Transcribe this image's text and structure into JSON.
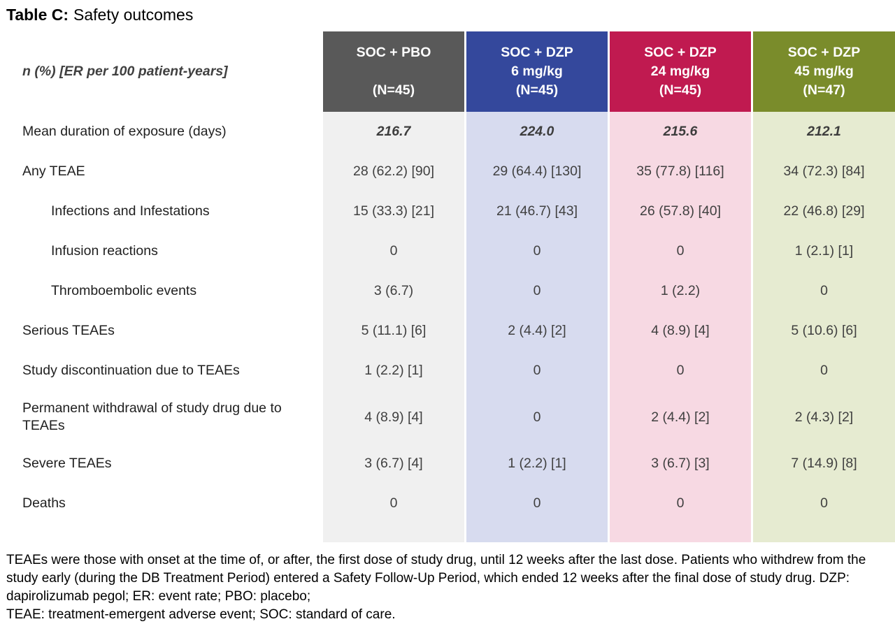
{
  "title": {
    "prefix": "Table C:",
    "text": "Safety outcomes"
  },
  "table": {
    "corner_label": "n (%) [ER per 100 patient-years]",
    "columns": [
      {
        "title": "SOC + PBO",
        "dose": "",
        "n": "(N=45)",
        "header_color": "#595959",
        "body_color": "#F0F0F0"
      },
      {
        "title": "SOC + DZP",
        "dose": "6 mg/kg",
        "n": "(N=45)",
        "header_color": "#34489C",
        "body_color": "#D7DBEF"
      },
      {
        "title": "SOC + DZP",
        "dose": "24 mg/kg",
        "n": "(N=45)",
        "header_color": "#C01A50",
        "body_color": "#F7D9E3"
      },
      {
        "title": "SOC + DZP",
        "dose": "45 mg/kg",
        "n": "(N=47)",
        "header_color": "#7A8C2B",
        "body_color": "#E6EBD1"
      }
    ],
    "rows": [
      {
        "label": "Mean duration of exposure (days)",
        "values": [
          "216.7",
          "224.0",
          "215.6",
          "212.1"
        ]
      },
      {
        "label": "Any TEAE",
        "values": [
          "28 (62.2) [90]",
          "29 (64.4) [130]",
          "35 (77.8) [116]",
          "34 (72.3) [84]"
        ]
      },
      {
        "label": "Infections and Infestations",
        "values": [
          "15 (33.3) [21]",
          "21 (46.7) [43]",
          "26 (57.8) [40]",
          "22 (46.8) [29]"
        ]
      },
      {
        "label": "Infusion reactions",
        "values": [
          "0",
          "0",
          "0",
          "1 (2.1) [1]"
        ]
      },
      {
        "label": "Thromboembolic events",
        "values": [
          "3 (6.7)",
          "0",
          "1 (2.2)",
          "0"
        ]
      },
      {
        "label": "Serious TEAEs",
        "values": [
          "5 (11.1) [6]",
          "2 (4.4) [2]",
          "4 (8.9) [4]",
          "5 (10.6) [6]"
        ]
      },
      {
        "label": "Study discontinuation due to TEAEs",
        "values": [
          "1 (2.2) [1]",
          "0",
          "0",
          "0"
        ]
      },
      {
        "label": "Permanent withdrawal of study drug due to TEAEs",
        "values": [
          "4 (8.9) [4]",
          "0",
          "2 (4.4) [2]",
          "2 (4.3) [2]"
        ]
      },
      {
        "label": "Severe TEAEs",
        "values": [
          "3 (6.7) [4]",
          "1 (2.2) [1]",
          "3 (6.7) [3]",
          "7 (14.9) [8]"
        ]
      },
      {
        "label": "Deaths",
        "values": [
          "0",
          "0",
          "0",
          "0"
        ]
      }
    ]
  },
  "footnote": {
    "text1": "TEAEs were those with onset at the time of, or after, the first dose of study drug, until 12 weeks after the last dose. Patients who withdrew from the study early (during the DB Treatment Period) entered a Safety Follow-Up Period, which ended 12 weeks after the final dose of study drug. DZP: dapirolizumab pegol; ER: event rate; PBO: placebo;",
    "text2": "TEAE: treatment-emergent adverse event; SOC: standard of care."
  }
}
